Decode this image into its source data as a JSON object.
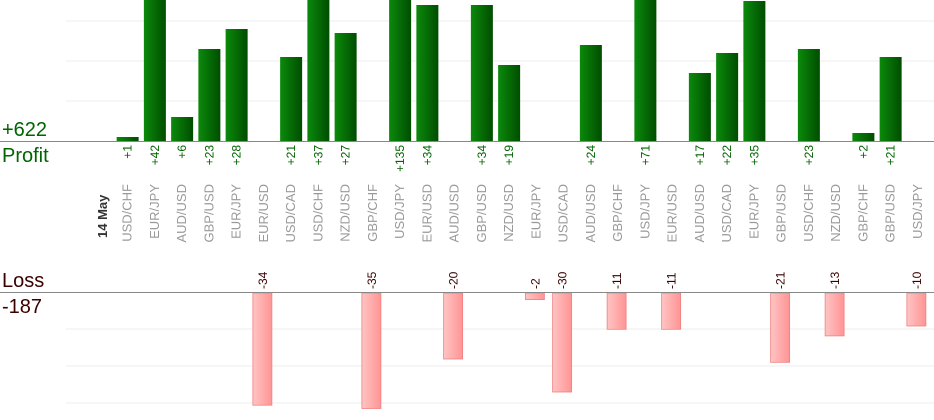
{
  "summary": {
    "profit_total": "+622",
    "profit_label": "Profit",
    "loss_label": "Loss",
    "loss_total": "-187"
  },
  "colors": {
    "profit_bar_light": "#0b8a0b",
    "profit_bar_dark": "#004d00",
    "profit_text": "#006400",
    "loss_bar_light": "#ffc4c4",
    "loss_bar_dark": "#ff9494",
    "loss_bar_stroke": "#f08080",
    "loss_text": "#3a0000",
    "axis": "#888888",
    "grid": "#eeeeee",
    "category_text": "#999999",
    "date_text": "#333333"
  },
  "chart_data": {
    "type": "bar",
    "date_label": "14 May",
    "categories": [
      "USD/CHF",
      "EUR/JPY",
      "AUD/USD",
      "GBP/USD",
      "EUR/JPY",
      "EUR/USD",
      "USD/CAD",
      "USD/CHF",
      "NZD/USD",
      "GBP/CHF",
      "USD/JPY",
      "EUR/USD",
      "AUD/USD",
      "GBP/USD",
      "NZD/USD",
      "EUR/JPY",
      "USD/CAD",
      "AUD/USD",
      "GBP/CHF",
      "USD/JPY",
      "EUR/USD",
      "AUD/USD",
      "USD/CAD",
      "EUR/JPY",
      "GBP/USD",
      "USD/CHF",
      "NZD/USD",
      "GBP/CHF",
      "GBP/USD",
      "USD/JPY"
    ],
    "series": [
      {
        "values": [
          1,
          42,
          6,
          23,
          28,
          null,
          21,
          37,
          27,
          null,
          135,
          34,
          null,
          34,
          19,
          null,
          null,
          24,
          null,
          71,
          null,
          17,
          22,
          35,
          null,
          23,
          null,
          2,
          21,
          null
        ]
      },
      {
        "values": [
          null,
          null,
          null,
          null,
          null,
          -34,
          null,
          null,
          null,
          -35,
          null,
          null,
          -20,
          null,
          null,
          -2,
          -30,
          null,
          -11,
          null,
          -11,
          null,
          null,
          null,
          -21,
          null,
          -13,
          null,
          null,
          -10
        ]
      }
    ],
    "value_labels": [
      "+1",
      "+42",
      "+6",
      "+23",
      "+28",
      "-34",
      "+21",
      "+37",
      "+27",
      "-35",
      "+135",
      "+34",
      "-20",
      "+34",
      "+19",
      "-2",
      "-30",
      "+24",
      "-11",
      "+71",
      "-11",
      "+17",
      "+22",
      "+35",
      "-21",
      "+23",
      "-13",
      "+2",
      "+21",
      "-10"
    ],
    "profit_ylim": [
      0,
      35
    ],
    "loss_ylim": [
      -35,
      0
    ],
    "grid": true
  }
}
